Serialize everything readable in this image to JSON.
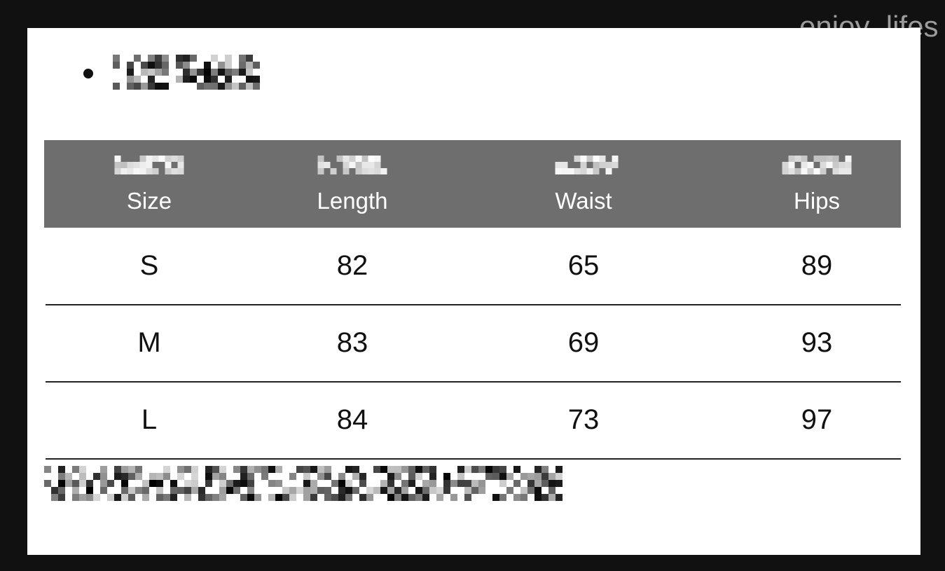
{
  "watermark": "enjoy_lifes",
  "table": {
    "headers": [
      "Size",
      "Length",
      "Waist",
      "Hips"
    ],
    "rows": [
      [
        "S",
        "82",
        "65",
        "89"
      ],
      [
        "M",
        "83",
        "69",
        "93"
      ],
      [
        "L",
        "84",
        "73",
        "97"
      ]
    ]
  },
  "colors": {
    "background": "#111111",
    "header": "#6e6e6e",
    "panel": "#ffffff"
  }
}
